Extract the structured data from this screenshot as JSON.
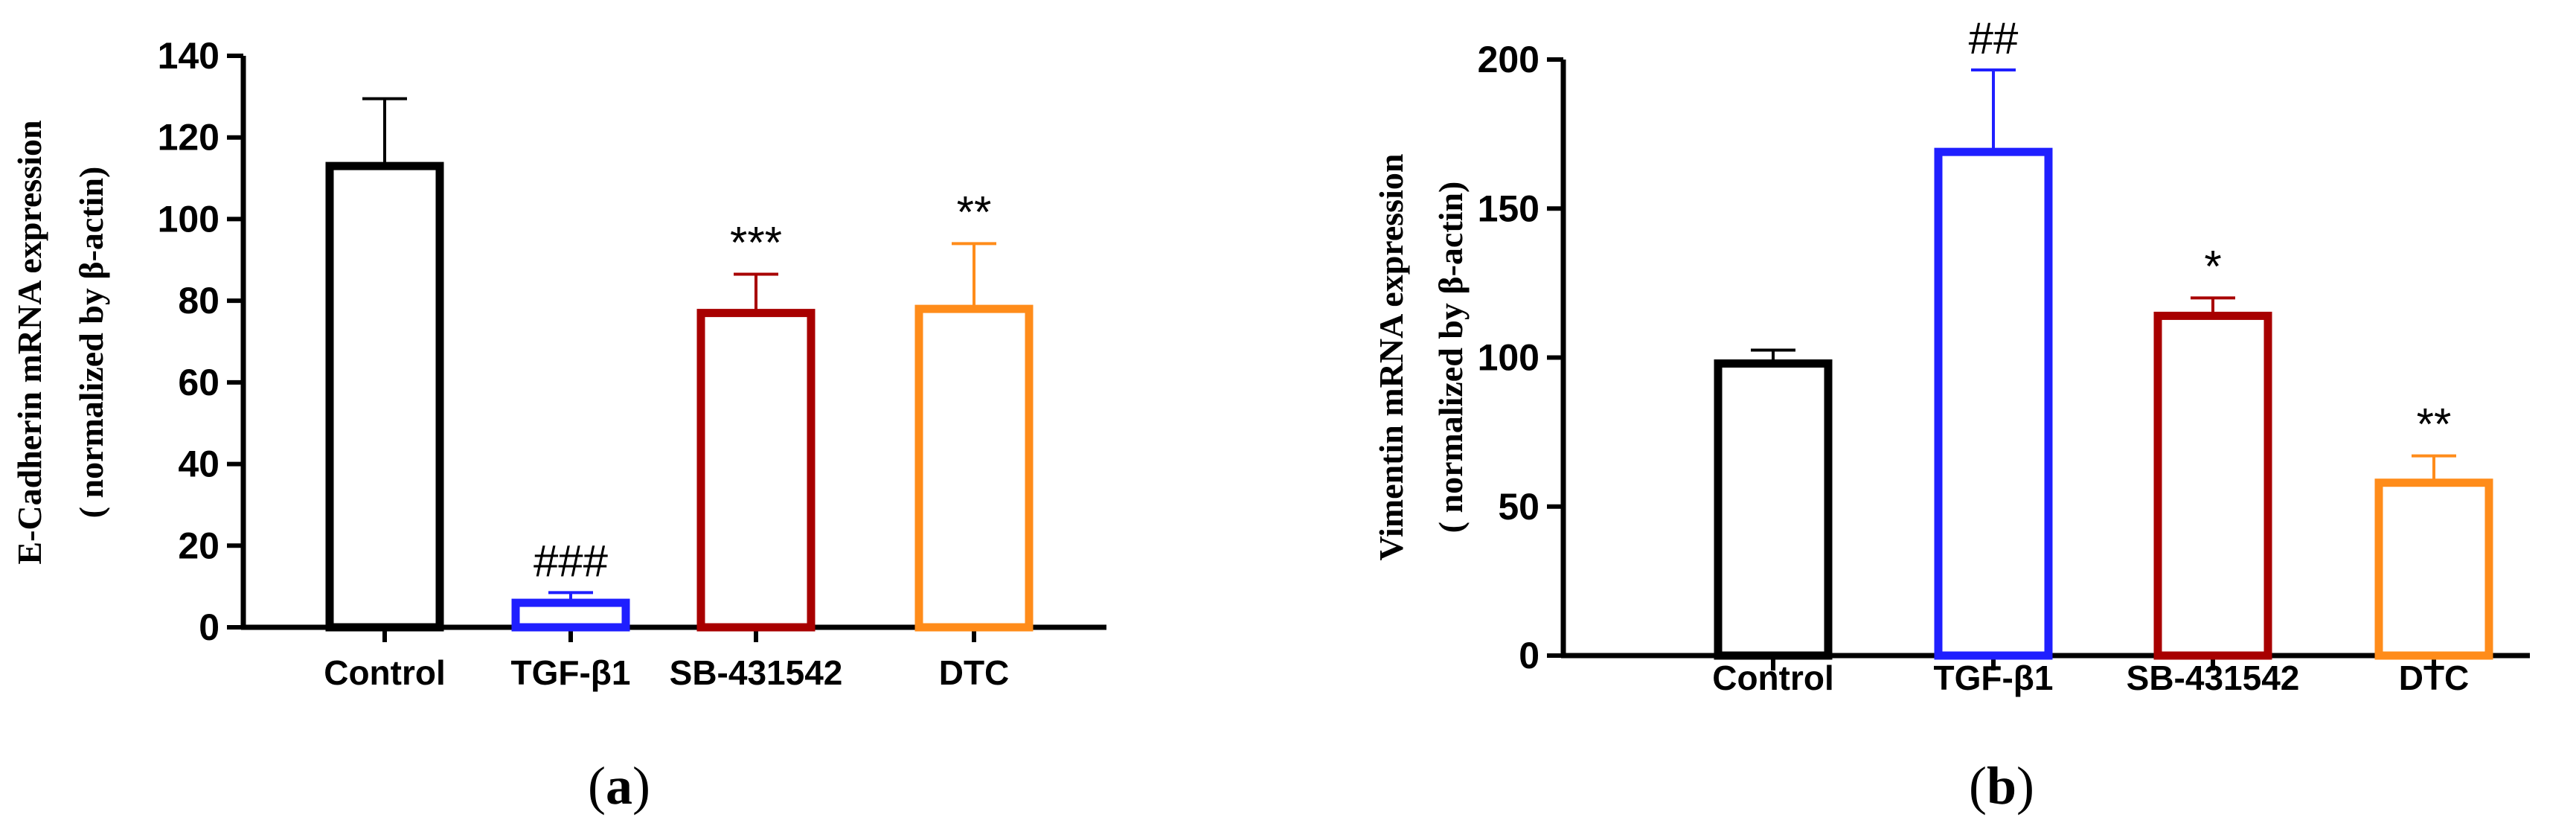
{
  "chart_data": [
    {
      "type": "bar",
      "panel": "a",
      "categories": [
        "Control",
        "TGF-β1",
        "SB-431542",
        "DTC"
      ],
      "values": [
        113,
        6,
        77,
        78
      ],
      "errors": [
        16.5,
        2.5,
        9.5,
        16
      ],
      "bar_colors": [
        "#000000",
        "#1f1fff",
        "#a80000",
        "#ff8c1a"
      ],
      "significance": [
        "",
        "###",
        "***",
        "**"
      ],
      "ylabel_line1": "E-Cadherin mRNA expression",
      "ylabel_line2": "( normalized by β-actin)",
      "ylim": [
        0,
        140
      ],
      "yticks": [
        0,
        20,
        40,
        60,
        80,
        100,
        120,
        140
      ],
      "panel_label": "a"
    },
    {
      "type": "bar",
      "panel": "b",
      "categories": [
        "Control",
        "TGF-β1",
        "SB-431542",
        "DTC"
      ],
      "values": [
        98,
        169,
        114,
        58
      ],
      "errors": [
        4.5,
        27.5,
        6,
        9
      ],
      "bar_colors": [
        "#000000",
        "#1f1fff",
        "#a80000",
        "#ff8c1a"
      ],
      "significance": [
        "",
        "##",
        "*",
        "**"
      ],
      "ylabel_line1": "Vimentin mRNA expression",
      "ylabel_line2": "( normalized by β-actin)",
      "ylim": [
        0,
        200
      ],
      "yticks": [
        0,
        50,
        100,
        150,
        200
      ],
      "panel_label": "b"
    }
  ]
}
